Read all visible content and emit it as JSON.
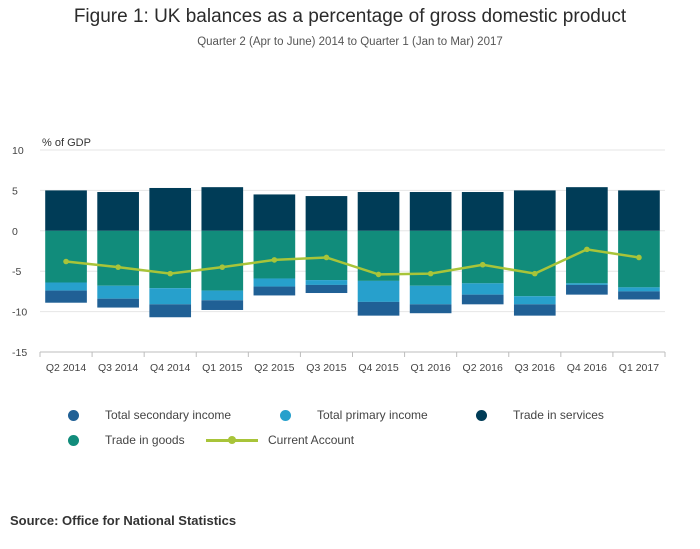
{
  "title": "Figure 1: UK balances as a percentage of gross domestic product",
  "subtitle": "Quarter 2 (Apr to June) 2014 to Quarter 1 (Jan to Mar) 2017",
  "source": "Source: Office for National Statistics",
  "chart_data": {
    "type": "bar",
    "stacked": true,
    "title": "Figure 1: UK balances as a percentage of gross domestic product",
    "subtitle": "Quarter 2 (Apr to June) 2014 to Quarter 1 (Jan to Mar) 2017",
    "ylabel": "% of GDP",
    "xlabel": "",
    "ylim": [
      -15,
      10
    ],
    "yticks": [
      10,
      5,
      0,
      -5,
      -10,
      -15
    ],
    "grid": true,
    "legend_position": "bottom",
    "categories": [
      "Q2 2014",
      "Q3 2014",
      "Q4 2014",
      "Q1 2015",
      "Q2 2015",
      "Q3 2015",
      "Q4 2015",
      "Q1 2016",
      "Q2 2016",
      "Q3 2016",
      "Q4 2016",
      "Q1 2017"
    ],
    "series": [
      {
        "name": "Trade in services",
        "kind": "bar",
        "color": "#003c57",
        "values": [
          5.0,
          4.8,
          5.3,
          5.4,
          4.5,
          4.3,
          4.8,
          4.8,
          4.8,
          5.0,
          5.4,
          5.0
        ]
      },
      {
        "name": "Trade in goods",
        "kind": "bar",
        "color": "#118c7b",
        "values": [
          -6.4,
          -6.8,
          -7.1,
          -7.4,
          -5.9,
          -6.1,
          -6.2,
          -6.8,
          -6.5,
          -8.1,
          -6.5,
          -7.0
        ]
      },
      {
        "name": "Total primary income",
        "kind": "bar",
        "color": "#27a0cc",
        "values": [
          -1.0,
          -1.6,
          -2.0,
          -1.2,
          -1.0,
          -0.6,
          -2.6,
          -2.3,
          -1.4,
          -1.0,
          -0.2,
          -0.5
        ]
      },
      {
        "name": "Total secondary income",
        "kind": "bar",
        "color": "#206095",
        "values": [
          -1.5,
          -1.1,
          -1.6,
          -1.2,
          -1.1,
          -1.0,
          -1.7,
          -1.1,
          -1.2,
          -1.4,
          -1.2,
          -1.0
        ]
      },
      {
        "name": "Current Account",
        "kind": "line",
        "color": "#a8c439",
        "values": [
          -3.8,
          -4.5,
          -5.3,
          -4.5,
          -3.6,
          -3.3,
          -5.4,
          -5.3,
          -4.2,
          -5.3,
          -2.3,
          -3.3
        ]
      }
    ],
    "legend": [
      {
        "name": "Total secondary income",
        "color": "#206095",
        "kind": "dot"
      },
      {
        "name": "Total primary income",
        "color": "#27a0cc",
        "kind": "dot"
      },
      {
        "name": "Trade in services",
        "color": "#003c57",
        "kind": "dot"
      },
      {
        "name": "Trade in goods",
        "color": "#118c7b",
        "kind": "dot"
      },
      {
        "name": "Current Account",
        "color": "#a8c439",
        "kind": "line"
      }
    ]
  }
}
